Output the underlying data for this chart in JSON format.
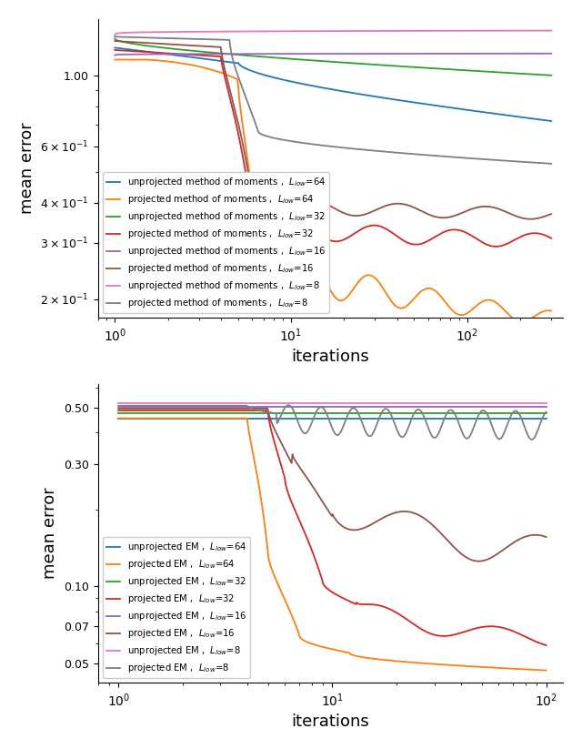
{
  "plot1": {
    "xlabel": "iterations",
    "ylabel": "mean error",
    "xlim": [
      0.8,
      350
    ],
    "ylim": [
      0.175,
      1.5
    ],
    "yticks": [
      0.2,
      0.3,
      0.4,
      0.6,
      1.0
    ],
    "ytick_labels": [
      "$2\\times10^{-1}$",
      "$3\\times10^{-1}$",
      "$4\\times10^{-1}$",
      "$6\\times10^{-1}$",
      "$1.00$"
    ],
    "legend_entries": [
      "unprojected method of moments ,  $L_{low}$=64",
      "projected method of moments ,  $L_{low}$=64",
      "unprojected method of moments ,  $L_{low}$=32",
      "projected method of moments ,  $L_{low}$=32",
      "unprojected method of moments ,  $L_{low}$=16",
      "projected method of moments ,  $L_{low}$=16",
      "unprojected method of moments ,  $L_{low}$=8",
      "projected method of moments ,  $L_{low}$=8"
    ],
    "colors": [
      "#1f77b4",
      "#ff7f0e",
      "#2ca02c",
      "#d62728",
      "#9467bd",
      "#8c564b",
      "#e377c2",
      "#7f7f7f"
    ]
  },
  "plot2": {
    "xlabel": "iterations",
    "ylabel": "mean error",
    "xlim": [
      0.8,
      120
    ],
    "ylim": [
      0.042,
      0.62
    ],
    "yticks": [
      0.05,
      0.07,
      0.1,
      0.3,
      0.5
    ],
    "ytick_labels": [
      "0.05",
      "0.07",
      "0.10",
      "0.30",
      "0.50"
    ],
    "legend_entries": [
      "unprojected EM ,  $L_{low}$=64",
      "projected EM ,  $L_{low}$=64",
      "unprojected EM ,  $L_{low}$=32",
      "projected EM ,  $L_{low}$=32",
      "unprojected EM ,  $L_{low}$=16",
      "projected EM ,  $L_{low}$=16",
      "unprojected EM ,  $L_{low}$=8",
      "projected EM ,  $L_{low}$=8"
    ],
    "colors": [
      "#1f77b4",
      "#ff7f0e",
      "#2ca02c",
      "#d62728",
      "#9467bd",
      "#8c564b",
      "#e377c2",
      "#7f7f7f"
    ]
  }
}
